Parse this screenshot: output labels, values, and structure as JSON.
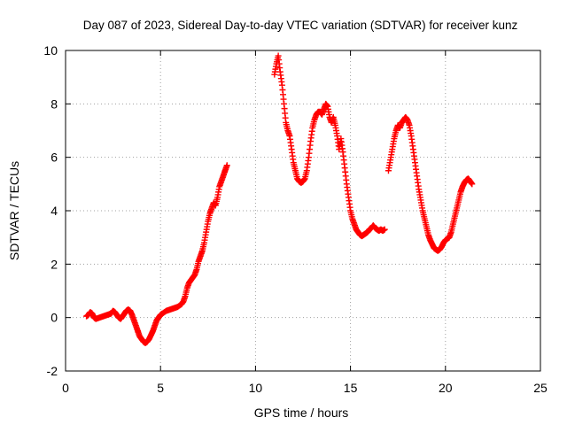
{
  "chart_data": {
    "type": "scatter",
    "title": "Day 087 of 2023, Sidereal Day-to-day VTEC variation (SDTVAR) for receiver kunz",
    "xlabel": "GPS time / hours",
    "ylabel": "SDTVAR / TECUs",
    "xlim": [
      0,
      25
    ],
    "ylim": [
      -2,
      10
    ],
    "xticks": [
      0,
      5,
      10,
      15,
      20,
      25
    ],
    "yticks": [
      -2,
      0,
      2,
      4,
      6,
      8,
      10
    ],
    "xtick_labels": [
      "0",
      "5",
      "10",
      "15",
      "20",
      "25"
    ],
    "ytick_labels": [
      "-2",
      "0",
      "2",
      "4",
      "6",
      "8",
      "10"
    ],
    "grid": true,
    "marker": "+",
    "series": [
      {
        "name": "SDTVAR",
        "color": "#ff0000",
        "segments": [
          [
            [
              1.1,
              0.05
            ],
            [
              1.2,
              0.1
            ],
            [
              1.3,
              0.2
            ],
            [
              1.4,
              0.15
            ],
            [
              1.5,
              0.0
            ],
            [
              1.6,
              -0.05
            ],
            [
              1.8,
              0.0
            ],
            [
              2.0,
              0.05
            ],
            [
              2.2,
              0.1
            ],
            [
              2.4,
              0.15
            ],
            [
              2.5,
              0.25
            ],
            [
              2.6,
              0.2
            ],
            [
              2.7,
              0.1
            ],
            [
              2.8,
              0.0
            ],
            [
              2.9,
              -0.05
            ],
            [
              3.0,
              0.05
            ],
            [
              3.1,
              0.15
            ],
            [
              3.2,
              0.25
            ],
            [
              3.3,
              0.3
            ],
            [
              3.4,
              0.25
            ],
            [
              3.5,
              0.1
            ],
            [
              3.6,
              -0.1
            ],
            [
              3.7,
              -0.3
            ],
            [
              3.8,
              -0.5
            ],
            [
              3.9,
              -0.7
            ],
            [
              4.0,
              -0.8
            ],
            [
              4.1,
              -0.9
            ],
            [
              4.2,
              -0.95
            ],
            [
              4.3,
              -0.9
            ],
            [
              4.4,
              -0.8
            ],
            [
              4.5,
              -0.65
            ],
            [
              4.6,
              -0.5
            ],
            [
              4.7,
              -0.3
            ],
            [
              4.8,
              -0.1
            ],
            [
              4.9,
              0.0
            ],
            [
              5.0,
              0.1
            ],
            [
              5.1,
              0.15
            ],
            [
              5.3,
              0.25
            ],
            [
              5.5,
              0.3
            ],
            [
              5.7,
              0.35
            ],
            [
              5.9,
              0.4
            ],
            [
              6.1,
              0.5
            ],
            [
              6.2,
              0.6
            ],
            [
              6.3,
              0.8
            ],
            [
              6.4,
              1.1
            ],
            [
              6.5,
              1.3
            ],
            [
              6.6,
              1.4
            ],
            [
              6.7,
              1.5
            ],
            [
              6.8,
              1.6
            ],
            [
              6.9,
              1.8
            ],
            [
              7.0,
              2.1
            ],
            [
              7.1,
              2.3
            ],
            [
              7.2,
              2.5
            ],
            [
              7.3,
              2.8
            ],
            [
              7.4,
              3.2
            ],
            [
              7.5,
              3.6
            ],
            [
              7.6,
              3.9
            ],
            [
              7.7,
              4.1
            ],
            [
              7.8,
              4.3
            ],
            [
              7.9,
              4.2
            ],
            [
              8.0,
              4.5
            ],
            [
              8.1,
              4.9
            ],
            [
              8.2,
              5.1
            ],
            [
              8.3,
              5.3
            ],
            [
              8.4,
              5.5
            ],
            [
              8.5,
              5.7
            ]
          ],
          [
            [
              11.0,
              9.1
            ],
            [
              11.1,
              9.5
            ],
            [
              11.2,
              9.8
            ],
            [
              11.3,
              9.2
            ],
            [
              11.4,
              8.7
            ],
            [
              11.5,
              8.0
            ],
            [
              11.6,
              7.3
            ],
            [
              11.7,
              7.0
            ],
            [
              11.8,
              6.8
            ],
            [
              11.9,
              6.3
            ],
            [
              12.0,
              5.8
            ],
            [
              12.1,
              5.5
            ],
            [
              12.2,
              5.2
            ],
            [
              12.3,
              5.1
            ],
            [
              12.4,
              5.05
            ],
            [
              12.5,
              5.1
            ],
            [
              12.6,
              5.2
            ],
            [
              12.7,
              5.5
            ],
            [
              12.8,
              6.0
            ],
            [
              12.9,
              6.6
            ],
            [
              13.0,
              7.1
            ],
            [
              13.1,
              7.4
            ],
            [
              13.2,
              7.6
            ],
            [
              13.3,
              7.7
            ],
            [
              13.4,
              7.7
            ],
            [
              13.5,
              7.6
            ],
            [
              13.6,
              7.8
            ],
            [
              13.7,
              8.0
            ],
            [
              13.8,
              7.9
            ],
            [
              13.9,
              7.5
            ],
            [
              14.0,
              7.3
            ],
            [
              14.1,
              7.5
            ],
            [
              14.2,
              7.2
            ],
            [
              14.3,
              6.8
            ],
            [
              14.4,
              6.3
            ],
            [
              14.5,
              6.7
            ],
            [
              14.6,
              6.2
            ],
            [
              14.7,
              5.6
            ],
            [
              14.8,
              5.0
            ],
            [
              14.9,
              4.5
            ],
            [
              15.0,
              4.0
            ],
            [
              15.1,
              3.7
            ],
            [
              15.2,
              3.5
            ],
            [
              15.3,
              3.3
            ],
            [
              15.4,
              3.2
            ],
            [
              15.5,
              3.1
            ],
            [
              15.6,
              3.05
            ],
            [
              15.7,
              3.1
            ],
            [
              15.8,
              3.15
            ],
            [
              15.9,
              3.2
            ],
            [
              16.0,
              3.3
            ],
            [
              16.1,
              3.35
            ],
            [
              16.2,
              3.45
            ],
            [
              16.3,
              3.35
            ],
            [
              16.4,
              3.3
            ],
            [
              16.5,
              3.25
            ],
            [
              16.6,
              3.3
            ],
            [
              16.7,
              3.25
            ],
            [
              16.8,
              3.3
            ]
          ],
          [
            [
              17.0,
              5.5
            ],
            [
              17.1,
              5.9
            ],
            [
              17.2,
              6.3
            ],
            [
              17.3,
              6.7
            ],
            [
              17.4,
              7.0
            ],
            [
              17.5,
              7.2
            ],
            [
              17.6,
              7.1
            ],
            [
              17.7,
              7.3
            ],
            [
              17.8,
              7.4
            ],
            [
              17.9,
              7.5
            ],
            [
              18.0,
              7.4
            ],
            [
              18.1,
              7.2
            ],
            [
              18.2,
              6.8
            ],
            [
              18.3,
              6.3
            ],
            [
              18.4,
              5.8
            ],
            [
              18.5,
              5.3
            ],
            [
              18.6,
              4.8
            ],
            [
              18.7,
              4.4
            ],
            [
              18.8,
              4.0
            ],
            [
              18.9,
              3.7
            ],
            [
              19.0,
              3.4
            ],
            [
              19.1,
              3.1
            ],
            [
              19.2,
              2.9
            ],
            [
              19.3,
              2.75
            ],
            [
              19.4,
              2.6
            ],
            [
              19.5,
              2.55
            ],
            [
              19.6,
              2.5
            ],
            [
              19.7,
              2.55
            ],
            [
              19.8,
              2.65
            ],
            [
              19.9,
              2.8
            ],
            [
              20.0,
              2.9
            ],
            [
              20.1,
              2.95
            ],
            [
              20.2,
              3.0
            ],
            [
              20.3,
              3.2
            ],
            [
              20.4,
              3.5
            ],
            [
              20.5,
              3.8
            ],
            [
              20.6,
              4.1
            ],
            [
              20.7,
              4.4
            ],
            [
              20.8,
              4.7
            ],
            [
              20.9,
              4.9
            ],
            [
              21.0,
              5.05
            ],
            [
              21.1,
              5.15
            ],
            [
              21.2,
              5.2
            ],
            [
              21.3,
              5.1
            ],
            [
              21.4,
              5.0
            ]
          ]
        ]
      }
    ]
  }
}
